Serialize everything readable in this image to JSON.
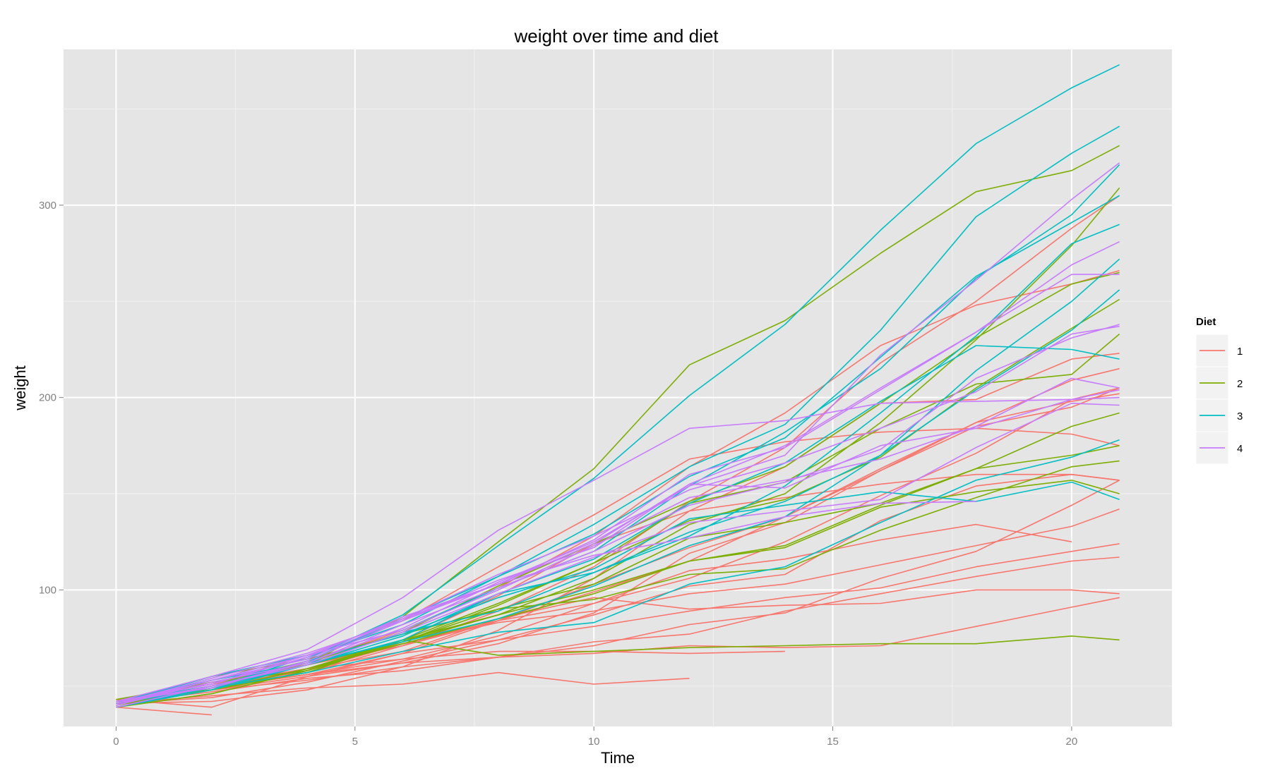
{
  "chart_data": {
    "type": "line",
    "title": "weight over time and diet",
    "xlabel": "Time",
    "ylabel": "weight",
    "xlim": [
      -1.1,
      22.1
    ],
    "ylim": [
      29,
      381
    ],
    "x_ticks": [
      0,
      5,
      10,
      15,
      20
    ],
    "y_ticks": [
      100,
      200,
      300
    ],
    "grid": true,
    "legend": {
      "title": "Diet",
      "position": "right"
    },
    "groups": [
      {
        "label": "1",
        "color": "#F8766D"
      },
      {
        "label": "2",
        "color": "#7CAE00"
      },
      {
        "label": "3",
        "color": "#00BFC4"
      },
      {
        "label": "4",
        "color": "#C77CFF"
      }
    ],
    "x": [
      0,
      2,
      4,
      6,
      8,
      10,
      12,
      14,
      16,
      18,
      20,
      21
    ],
    "series": [
      {
        "diet": "1",
        "values": [
          42,
          51,
          59,
          64,
          76,
          93,
          106,
          125,
          149,
          171,
          199,
          205
        ]
      },
      {
        "diet": "1",
        "values": [
          40,
          49,
          58,
          72,
          84,
          103,
          122,
          138,
          162,
          187,
          209,
          215
        ]
      },
      {
        "diet": "1",
        "values": [
          43,
          39,
          55,
          67,
          84,
          99,
          115,
          138,
          163,
          187,
          198,
          202
        ]
      },
      {
        "diet": "1",
        "values": [
          42,
          49,
          56,
          67,
          74,
          87,
          102,
          108,
          136,
          154,
          160,
          157
        ]
      },
      {
        "diet": "1",
        "values": [
          41,
          42,
          48,
          60,
          79,
          106,
          141,
          164,
          197,
          199,
          220,
          223
        ]
      },
      {
        "diet": "1",
        "values": [
          41,
          49,
          59,
          74,
          97,
          124,
          141,
          148,
          155,
          160,
          160,
          157
        ]
      },
      {
        "diet": "1",
        "values": [
          41,
          49,
          57,
          71,
          89,
          112,
          146,
          174,
          218,
          250,
          288,
          305
        ]
      },
      {
        "diet": "1",
        "values": [
          42,
          50,
          61,
          71,
          84,
          93,
          110,
          116,
          126,
          134,
          125,
          null
        ]
      },
      {
        "diet": "1",
        "values": [
          42,
          51,
          59,
          68,
          85,
          96,
          90,
          92,
          93,
          100,
          100,
          98
        ]
      },
      {
        "diet": "1",
        "values": [
          41,
          44,
          52,
          63,
          74,
          81,
          89,
          96,
          101,
          112,
          120,
          124
        ]
      },
      {
        "diet": "1",
        "values": [
          43,
          51,
          63,
          84,
          112,
          139,
          168,
          177,
          182,
          184,
          181,
          175
        ]
      },
      {
        "diet": "1",
        "values": [
          41,
          49,
          56,
          62,
          72,
          88,
          119,
          135,
          162,
          185,
          195,
          205
        ]
      },
      {
        "diet": "1",
        "values": [
          41,
          48,
          53,
          60,
          65,
          67,
          71,
          70,
          71,
          81,
          91,
          96
        ]
      },
      {
        "diet": "1",
        "values": [
          41,
          49,
          62,
          79,
          101,
          128,
          164,
          192,
          227,
          248,
          259,
          266
        ]
      },
      {
        "diet": "1",
        "values": [
          41,
          49,
          56,
          64,
          68,
          68,
          67,
          68,
          null,
          null,
          null,
          null
        ]
      },
      {
        "diet": "1",
        "values": [
          41,
          45,
          49,
          51,
          57,
          51,
          54,
          null,
          null,
          null,
          null,
          null
        ]
      },
      {
        "diet": "1",
        "values": [
          42,
          51,
          61,
          72,
          83,
          89,
          98,
          103,
          113,
          123,
          133,
          142
        ]
      },
      {
        "diet": "1",
        "values": [
          39,
          35,
          null,
          null,
          null,
          null,
          null,
          null,
          null,
          null,
          null,
          null
        ]
      },
      {
        "diet": "1",
        "values": [
          43,
          48,
          55,
          62,
          65,
          71,
          82,
          88,
          106,
          120,
          144,
          157
        ]
      },
      {
        "diet": "1",
        "values": [
          41,
          47,
          54,
          58,
          65,
          73,
          77,
          89,
          98,
          107,
          115,
          117
        ]
      },
      {
        "diet": "2",
        "values": [
          40,
          50,
          62,
          86,
          125,
          163,
          217,
          240,
          275,
          307,
          318,
          331
        ]
      },
      {
        "diet": "2",
        "values": [
          41,
          55,
          64,
          77,
          90,
          95,
          108,
          111,
          131,
          148,
          164,
          167
        ]
      },
      {
        "diet": "2",
        "values": [
          43,
          52,
          61,
          73,
          90,
          103,
          127,
          135,
          145,
          163,
          170,
          175
        ]
      },
      {
        "diet": "2",
        "values": [
          42,
          52,
          58,
          74,
          66,
          68,
          70,
          71,
          72,
          72,
          76,
          74
        ]
      },
      {
        "diet": "2",
        "values": [
          40,
          49,
          62,
          78,
          102,
          124,
          146,
          164,
          197,
          231,
          259,
          265
        ]
      },
      {
        "diet": "2",
        "values": [
          42,
          48,
          57,
          74,
          93,
          114,
          136,
          147,
          169,
          205,
          236,
          251
        ]
      },
      {
        "diet": "2",
        "values": [
          39,
          46,
          58,
          73,
          87,
          100,
          115,
          123,
          144,
          163,
          185,
          192
        ]
      },
      {
        "diet": "2",
        "values": [
          39,
          46,
          58,
          73,
          92,
          114,
          145,
          156,
          184,
          207,
          212,
          233
        ]
      },
      {
        "diet": "2",
        "values": [
          39,
          48,
          59,
          74,
          87,
          106,
          134,
          150,
          187,
          230,
          279,
          309
        ]
      },
      {
        "diet": "2",
        "values": [
          42,
          48,
          59,
          72,
          85,
          98,
          115,
          122,
          143,
          151,
          157,
          150
        ]
      },
      {
        "diet": "3",
        "values": [
          42,
          53,
          62,
          73,
          85,
          102,
          123,
          138,
          170,
          204,
          235,
          256
        ]
      },
      {
        "diet": "3",
        "values": [
          41,
          49,
          65,
          82,
          107,
          129,
          159,
          179,
          221,
          263,
          291,
          305
        ]
      },
      {
        "diet": "3",
        "values": [
          39,
          50,
          63,
          77,
          96,
          111,
          137,
          144,
          151,
          146,
          156,
          147
        ]
      },
      {
        "diet": "3",
        "values": [
          41,
          49,
          63,
          85,
          107,
          134,
          164,
          186,
          235,
          294,
          327,
          341
        ]
      },
      {
        "diet": "3",
        "values": [
          41,
          53,
          64,
          87,
          123,
          158,
          201,
          238,
          287,
          332,
          361,
          373
        ]
      },
      {
        "diet": "3",
        "values": [
          39,
          48,
          61,
          76,
          98,
          116,
          145,
          166,
          198,
          227,
          225,
          220
        ]
      },
      {
        "diet": "3",
        "values": [
          39,
          49,
          57,
          68,
          78,
          83,
          103,
          112,
          135,
          157,
          169,
          178
        ]
      },
      {
        "diet": "3",
        "values": [
          41,
          49,
          61,
          74,
          98,
          109,
          128,
          154,
          192,
          232,
          280,
          290
        ]
      },
      {
        "diet": "3",
        "values": [
          42,
          50,
          61,
          78,
          89,
          109,
          130,
          146,
          170,
          214,
          250,
          272
        ]
      },
      {
        "diet": "3",
        "values": [
          41,
          55,
          66,
          79,
          101,
          120,
          154,
          182,
          215,
          262,
          295,
          321
        ]
      },
      {
        "diet": "4",
        "values": [
          42,
          51,
          66,
          85,
          103,
          124,
          155,
          153,
          175,
          184,
          199,
          204
        ]
      },
      {
        "diet": "4",
        "values": [
          42,
          49,
          63,
          84,
          103,
          126,
          160,
          174,
          204,
          234,
          269,
          281
        ]
      },
      {
        "diet": "4",
        "values": [
          42,
          55,
          69,
          96,
          131,
          157,
          184,
          188,
          197,
          198,
          199,
          200
        ]
      },
      {
        "diet": "4",
        "values": [
          42,
          51,
          65,
          86,
          103,
          118,
          127,
          138,
          145,
          146,
          null,
          null
        ]
      },
      {
        "diet": "4",
        "values": [
          41,
          50,
          61,
          78,
          98,
          117,
          135,
          141,
          147,
          174,
          197,
          196
        ]
      },
      {
        "diet": "4",
        "values": [
          40,
          52,
          62,
          82,
          101,
          120,
          144,
          156,
          173,
          210,
          231,
          238
        ]
      },
      {
        "diet": "4",
        "values": [
          41,
          53,
          66,
          79,
          100,
          123,
          148,
          157,
          168,
          185,
          210,
          205
        ]
      },
      {
        "diet": "4",
        "values": [
          39,
          50,
          62,
          80,
          104,
          125,
          154,
          170,
          222,
          261,
          303,
          322
        ]
      },
      {
        "diet": "4",
        "values": [
          40,
          53,
          64,
          85,
          108,
          128,
          152,
          166,
          184,
          203,
          233,
          237
        ]
      },
      {
        "diet": "4",
        "values": [
          41,
          54,
          67,
          84,
          105,
          122,
          155,
          175,
          205,
          234,
          264,
          264
        ]
      }
    ]
  }
}
